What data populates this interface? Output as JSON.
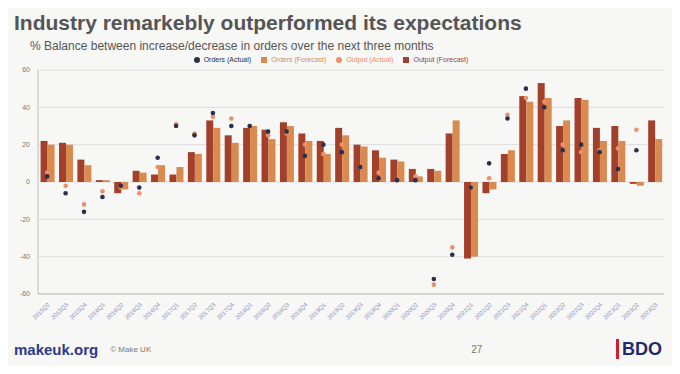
{
  "chart_data": {
    "type": "bar",
    "title": "Industry remarkebly outperformed its expectations",
    "subtitle": "% Balance between increase/decrease in orders over the next three months",
    "categories": [
      "2015Q2",
      "2015Q3",
      "2015Q4",
      "2016Q1",
      "2016Q2",
      "2016Q3",
      "2016Q4",
      "2017Q1",
      "2017Q2",
      "2017Q3",
      "2017Q4",
      "2018Q1",
      "2018Q2",
      "2018Q3",
      "2018Q4",
      "2019Q1",
      "2019Q2",
      "2019Q3",
      "2019Q4",
      "2020Q1",
      "2020Q2",
      "2020Q3",
      "2020Q4",
      "2021Q1",
      "2021Q2",
      "2021Q3",
      "2021Q4",
      "2022Q1",
      "2022Q2",
      "2022Q3",
      "2022Q4",
      "2023Q1",
      "2023Q2",
      "2023Q3"
    ],
    "series": [
      {
        "name": "Output (Forecast)",
        "type": "bar",
        "color": "#a3402c",
        "values": [
          22,
          21,
          12,
          1,
          -6,
          6,
          4,
          4,
          16,
          33,
          25,
          29,
          28,
          32,
          26,
          22,
          29,
          20,
          17,
          12,
          7,
          7,
          26,
          -41,
          -6,
          15,
          46,
          53,
          30,
          45,
          29,
          30,
          -1,
          33
        ]
      },
      {
        "name": "Orders (Forecast)",
        "type": "bar",
        "color": "#d98a4e",
        "values": [
          20,
          20,
          9,
          1,
          -4,
          5,
          9,
          8,
          15,
          29,
          21,
          30,
          23,
          30,
          22,
          15,
          25,
          19,
          13,
          11,
          3,
          6,
          33,
          -40,
          -4,
          17,
          43,
          45,
          33,
          44,
          22,
          22,
          -2,
          23
        ]
      },
      {
        "name": "Output (Actual)",
        "type": "scatter",
        "color": "#ec8f6a",
        "values": [
          5,
          -2,
          -12,
          -5,
          -3,
          -6,
          8,
          31,
          26,
          35,
          34,
          30,
          25,
          26,
          20,
          15,
          20,
          8,
          5,
          1,
          3,
          -55,
          -35,
          -3,
          2,
          36,
          45,
          43,
          20,
          16,
          17,
          18,
          28,
          null
        ]
      },
      {
        "name": "Orders (Actual)",
        "type": "scatter",
        "color": "#2b2f4a",
        "values": [
          3,
          -6,
          -16,
          -8,
          -2,
          -3,
          13,
          30,
          25,
          37,
          30,
          30,
          27,
          27,
          14,
          20,
          16,
          8,
          2,
          1,
          1,
          -52,
          -39,
          -3,
          10,
          34,
          50,
          40,
          17,
          20,
          16,
          7,
          17,
          null
        ]
      }
    ],
    "ylim": [
      -60,
      60
    ],
    "yticks": [
      -60,
      -40,
      -20,
      0,
      20,
      40,
      60
    ],
    "grid": true,
    "legend": "top"
  },
  "footer": {
    "site": "makeuk.org",
    "copyright": "© Make UK",
    "page": "27",
    "logo": "BDO"
  }
}
